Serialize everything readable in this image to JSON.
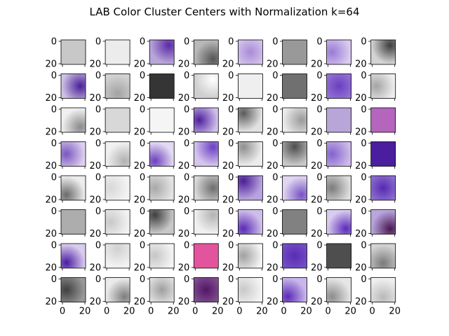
{
  "chart_data": {
    "type": "heatmap",
    "title": "LAB Color Cluster Centers with Normalization k=64",
    "grid": {
      "rows": 8,
      "cols": 8
    },
    "axis": {
      "xlim": [
        0,
        20
      ],
      "ylim": [
        20,
        0
      ],
      "x_ticks": [
        "0",
        "20"
      ],
      "y_ticks": [
        "0",
        "20"
      ]
    },
    "cells": [
      {
        "name": "cluster-1",
        "type": "flat",
        "colors": [
          "#c8c8c8"
        ]
      },
      {
        "name": "cluster-2",
        "type": "flat",
        "colors": [
          "#ececec"
        ]
      },
      {
        "name": "cluster-3",
        "type": "radial",
        "colors": [
          "#5a2aa6",
          "#b9a6d9"
        ],
        "center": "top-right"
      },
      {
        "name": "cluster-4",
        "type": "radial",
        "colors": [
          "#555555",
          "#b8b8b8"
        ],
        "center": "bottom-right"
      },
      {
        "name": "cluster-5",
        "type": "radial",
        "colors": [
          "#a98ad8",
          "#ddd0ee"
        ],
        "center": "middle"
      },
      {
        "name": "cluster-6",
        "type": "flat",
        "colors": [
          "#999999"
        ]
      },
      {
        "name": "cluster-7",
        "type": "radial",
        "colors": [
          "#9a7ad6",
          "#d9ccef"
        ],
        "center": "middle-left"
      },
      {
        "name": "cluster-8",
        "type": "radial",
        "colors": [
          "#3c3c3c",
          "#d4d4d4"
        ],
        "center": "top-right"
      },
      {
        "name": "cluster-9",
        "type": "radial",
        "colors": [
          "#4a1f96",
          "#cfc2e6"
        ],
        "center": "middle-right"
      },
      {
        "name": "cluster-10",
        "type": "radial",
        "colors": [
          "#a2a2a2",
          "#d2d2d2"
        ],
        "center": "bottom"
      },
      {
        "name": "cluster-11",
        "type": "flat",
        "colors": [
          "#353535"
        ]
      },
      {
        "name": "cluster-12",
        "type": "radial",
        "colors": [
          "#ffffff",
          "#cfcfcf"
        ],
        "center": "top-right"
      },
      {
        "name": "cluster-13",
        "type": "flat",
        "colors": [
          "#efefef"
        ]
      },
      {
        "name": "cluster-14",
        "type": "flat",
        "colors": [
          "#707070"
        ]
      },
      {
        "name": "cluster-15",
        "type": "radial",
        "colors": [
          "#6a3fc0",
          "#9c7ed8"
        ],
        "center": "middle"
      },
      {
        "name": "cluster-16",
        "type": "radial",
        "colors": [
          "#a4a4a4",
          "#eeeeee"
        ],
        "center": "middle-left"
      },
      {
        "name": "cluster-17",
        "type": "radial",
        "colors": [
          "#8a8a8a",
          "#f0f0f0"
        ],
        "center": "bottom-right"
      },
      {
        "name": "cluster-18",
        "type": "flat",
        "colors": [
          "#d8d8d8"
        ]
      },
      {
        "name": "cluster-19",
        "type": "flat",
        "colors": [
          "#f5f5f5"
        ]
      },
      {
        "name": "cluster-20",
        "type": "radial",
        "colors": [
          "#4e1f9c",
          "#d0c0ea"
        ],
        "center": "middle-left"
      },
      {
        "name": "cluster-21",
        "type": "radial",
        "colors": [
          "#5a5a5a",
          "#e2e2e2"
        ],
        "center": "top-left"
      },
      {
        "name": "cluster-22",
        "type": "radial",
        "colors": [
          "#9a9a9a",
          "#ebebeb"
        ],
        "center": "middle-right"
      },
      {
        "name": "cluster-23",
        "type": "flat",
        "colors": [
          "#b8a6d8"
        ]
      },
      {
        "name": "cluster-24",
        "type": "flat",
        "colors": [
          "#b565bb"
        ]
      },
      {
        "name": "cluster-25",
        "type": "radial",
        "colors": [
          "#7a55c0",
          "#ddd2ee"
        ],
        "center": "middle-left"
      },
      {
        "name": "cluster-26",
        "type": "radial",
        "colors": [
          "#b0b0b0",
          "#f1f1f1"
        ],
        "center": "bottom-right"
      },
      {
        "name": "cluster-27",
        "type": "radial",
        "colors": [
          "#6b40bd",
          "#e4daf3"
        ],
        "center": "bottom-left"
      },
      {
        "name": "cluster-28",
        "type": "radial",
        "colors": [
          "#6b3fc4",
          "#d4c5ec"
        ],
        "center": "top-right"
      },
      {
        "name": "cluster-29",
        "type": "radial",
        "colors": [
          "#8f8f8f",
          "#ececec"
        ],
        "center": "top-left"
      },
      {
        "name": "cluster-30",
        "type": "radial",
        "colors": [
          "#4d4d4d",
          "#c7c7c7"
        ],
        "center": "top"
      },
      {
        "name": "cluster-31",
        "type": "radial",
        "colors": [
          "#8462cc",
          "#cdbbe9"
        ],
        "center": "middle-left"
      },
      {
        "name": "cluster-32",
        "type": "flat",
        "colors": [
          "#4a1e9e"
        ]
      },
      {
        "name": "cluster-33",
        "type": "radial",
        "colors": [
          "#6a6a6a",
          "#ececec"
        ],
        "center": "bottom-left"
      },
      {
        "name": "cluster-34",
        "type": "radial",
        "colors": [
          "#d8d8d8",
          "#f4f4f4"
        ],
        "center": "middle-left"
      },
      {
        "name": "cluster-35",
        "type": "radial",
        "colors": [
          "#a8a8a8",
          "#e4e4e4"
        ],
        "center": "middle-left"
      },
      {
        "name": "cluster-36",
        "type": "radial",
        "colors": [
          "#6d6d6d",
          "#d8d8d8"
        ],
        "center": "middle-right"
      },
      {
        "name": "cluster-37",
        "type": "radial",
        "colors": [
          "#4a1e96",
          "#b8a3de"
        ],
        "center": "top-left"
      },
      {
        "name": "cluster-38",
        "type": "radial",
        "colors": [
          "#7752c4",
          "#e0d6f0"
        ],
        "center": "bottom-right"
      },
      {
        "name": "cluster-39",
        "type": "radial",
        "colors": [
          "#7b7b7b",
          "#dedede"
        ],
        "center": "middle-left"
      },
      {
        "name": "cluster-40",
        "type": "radial",
        "colors": [
          "#5529b0",
          "#9b80d8"
        ],
        "center": "middle"
      },
      {
        "name": "cluster-41",
        "type": "flat",
        "colors": [
          "#adadad"
        ]
      },
      {
        "name": "cluster-42",
        "type": "radial",
        "colors": [
          "#c8c8c8",
          "#f2f2f2"
        ],
        "center": "middle-left"
      },
      {
        "name": "cluster-43",
        "type": "radial",
        "colors": [
          "#3e3e3e",
          "#c8c8c8"
        ],
        "center": "top-left"
      },
      {
        "name": "cluster-44",
        "type": "radial",
        "colors": [
          "#b4b4b4",
          "#f0f0f0"
        ],
        "center": "top-right"
      },
      {
        "name": "cluster-45",
        "type": "radial",
        "colors": [
          "#5a2bb5",
          "#cfbeea"
        ],
        "center": "bottom-left"
      },
      {
        "name": "cluster-46",
        "type": "flat",
        "colors": [
          "#818181"
        ]
      },
      {
        "name": "cluster-47",
        "type": "radial",
        "colors": [
          "#5a2ab8",
          "#d8ccf0"
        ],
        "center": "bottom-right"
      },
      {
        "name": "cluster-48",
        "type": "radial",
        "colors": [
          "#4a1850",
          "#b9a6df"
        ],
        "center": "bottom-right"
      },
      {
        "name": "cluster-49",
        "type": "radial",
        "colors": [
          "#4a1aa0",
          "#d8cbee"
        ],
        "center": "bottom-left"
      },
      {
        "name": "cluster-50",
        "type": "radial",
        "colors": [
          "#d0d0d0",
          "#f2f2f2"
        ],
        "center": "top"
      },
      {
        "name": "cluster-51",
        "type": "radial",
        "colors": [
          "#c6c6c6",
          "#f4f4f4"
        ],
        "center": "middle-left"
      },
      {
        "name": "cluster-52",
        "type": "flat",
        "colors": [
          "#e2559c"
        ]
      },
      {
        "name": "cluster-53",
        "type": "radial",
        "colors": [
          "#a0a0a0",
          "#f4f4f4"
        ],
        "center": "middle-left"
      },
      {
        "name": "cluster-54",
        "type": "radial",
        "colors": [
          "#5a2bb5",
          "#7a58c8"
        ],
        "center": "middle"
      },
      {
        "name": "cluster-55",
        "type": "flat",
        "colors": [
          "#4e4e4e"
        ]
      },
      {
        "name": "cluster-56",
        "type": "radial",
        "colors": [
          "#7a7a7a",
          "#d4d4d4"
        ],
        "center": "bottom"
      },
      {
        "name": "cluster-57",
        "type": "radial",
        "colors": [
          "#3f3f3f",
          "#9a9a9a"
        ],
        "center": "middle-left"
      },
      {
        "name": "cluster-58",
        "type": "radial",
        "colors": [
          "#7d7d7d",
          "#ebebeb"
        ],
        "center": "bottom-right"
      },
      {
        "name": "cluster-59",
        "type": "radial",
        "colors": [
          "#9e9e9e",
          "#eeeeee"
        ],
        "center": "middle"
      },
      {
        "name": "cluster-60",
        "type": "radial",
        "colors": [
          "#521764",
          "#8a5a9a"
        ],
        "center": "middle"
      },
      {
        "name": "cluster-61",
        "type": "radial",
        "colors": [
          "#c8c8c8",
          "#f4f4f4"
        ],
        "center": "middle-left"
      },
      {
        "name": "cluster-62",
        "type": "radial",
        "colors": [
          "#5a2ab8",
          "#c8b6ea"
        ],
        "center": "bottom-left"
      },
      {
        "name": "cluster-63",
        "type": "radial",
        "colors": [
          "#8c8c8c",
          "#e6e6e6"
        ],
        "center": "bottom-left"
      },
      {
        "name": "cluster-64",
        "type": "radial",
        "colors": [
          "#b9b9b9",
          "#efefef"
        ],
        "center": "bottom"
      }
    ]
  }
}
